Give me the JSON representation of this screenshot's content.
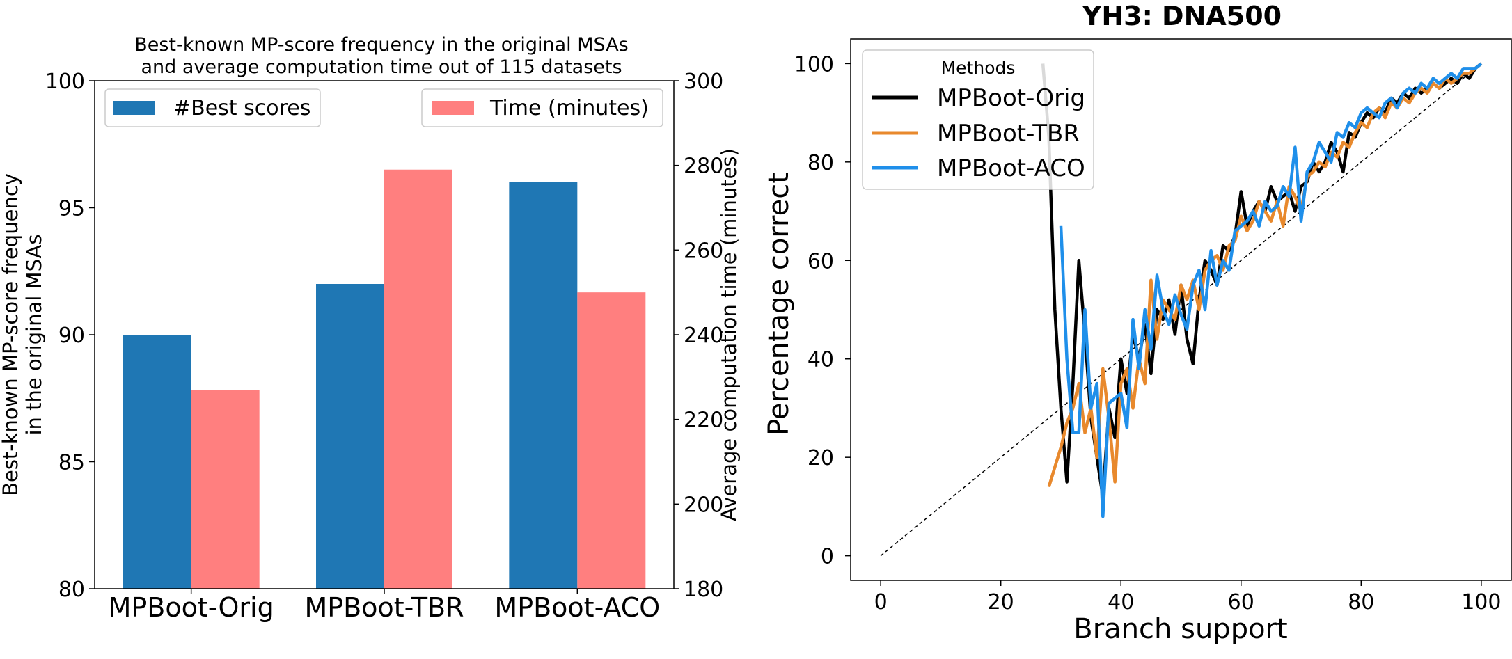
{
  "chart_data": [
    {
      "type": "bar",
      "title_lines": [
        "Best-known MP-score frequency in the original MSAs",
        "and average computation time out of 115 datasets"
      ],
      "categories": [
        "MPBoot-Orig",
        "MPBoot-TBR",
        "MPBoot-ACO"
      ],
      "ylabel_left_lines": [
        "Best-known MP-score frequency",
        "in the original MSAs"
      ],
      "ylabel_right": "Average computation time (minutes)",
      "ylim_left": [
        80,
        100
      ],
      "ylim_right": [
        180,
        300
      ],
      "yticks_left": [
        "80",
        "85",
        "90",
        "95",
        "100"
      ],
      "yticks_right": [
        "180",
        "200",
        "220",
        "240",
        "260",
        "280",
        "300"
      ],
      "series": [
        {
          "name": "#Best scores",
          "axis": "left",
          "color": "#1f77b4",
          "values": [
            90,
            92,
            96
          ]
        },
        {
          "name": "Time (minutes)",
          "axis": "right",
          "color": "#ff7f7f",
          "values": [
            227,
            279,
            250
          ]
        }
      ],
      "legend_left_position": "upper-left",
      "legend_right_position": "upper-right"
    },
    {
      "type": "line",
      "title": "YH3: DNA500",
      "xlabel": "Branch support",
      "ylabel": "Percentage correct",
      "xlim": [
        -5,
        105
      ],
      "ylim": [
        -5,
        105
      ],
      "xticks": [
        "0",
        "20",
        "40",
        "60",
        "80",
        "100"
      ],
      "yticks": [
        "0",
        "20",
        "40",
        "60",
        "80",
        "100"
      ],
      "legend_title": "Methods",
      "legend_position": "upper-left",
      "diagonal": {
        "from": [
          0,
          0
        ],
        "to": [
          100,
          100
        ],
        "style": "dashed",
        "color": "#000000"
      },
      "series": [
        {
          "name": "MPBoot-Orig",
          "color": "#000000",
          "x": [
            27,
            28,
            29,
            30,
            31,
            32,
            33,
            34,
            35,
            36,
            37,
            38,
            39,
            40,
            41,
            42,
            43,
            44,
            45,
            46,
            47,
            48,
            49,
            50,
            51,
            52,
            53,
            54,
            55,
            56,
            57,
            58,
            59,
            60,
            61,
            62,
            63,
            64,
            65,
            66,
            67,
            68,
            69,
            70,
            71,
            72,
            73,
            74,
            75,
            76,
            77,
            78,
            79,
            80,
            81,
            82,
            83,
            84,
            85,
            86,
            87,
            88,
            89,
            90,
            91,
            92,
            93,
            94,
            95,
            96,
            97,
            98,
            99,
            100
          ],
          "y": [
            100,
            85,
            50,
            30,
            15,
            35,
            60,
            45,
            28,
            20,
            12,
            30,
            24,
            40,
            33,
            45,
            40,
            47,
            37,
            50,
            48,
            52,
            45,
            55,
            44,
            39,
            52,
            60,
            58,
            55,
            63,
            62,
            65,
            74,
            67,
            70,
            72,
            70,
            75,
            72,
            73,
            74,
            70,
            75,
            76,
            80,
            78,
            80,
            84,
            82,
            78,
            86,
            85,
            88,
            90,
            89,
            91,
            90,
            93,
            92,
            94,
            93,
            95,
            94,
            95,
            96,
            95,
            96,
            97,
            96,
            98,
            97,
            99,
            100
          ]
        },
        {
          "name": "MPBoot-TBR",
          "color": "#e8892d",
          "x": [
            28,
            29,
            30,
            31,
            32,
            33,
            34,
            35,
            36,
            37,
            38,
            39,
            40,
            41,
            42,
            43,
            44,
            45,
            46,
            47,
            48,
            49,
            50,
            51,
            52,
            53,
            54,
            55,
            56,
            57,
            58,
            59,
            60,
            61,
            62,
            63,
            64,
            65,
            66,
            67,
            68,
            69,
            70,
            71,
            72,
            73,
            74,
            75,
            76,
            77,
            78,
            79,
            80,
            81,
            82,
            83,
            84,
            85,
            86,
            87,
            88,
            89,
            90,
            91,
            92,
            93,
            94,
            95,
            96,
            97,
            98,
            99,
            100
          ],
          "y": [
            14,
            18,
            22,
            27,
            30,
            35,
            25,
            30,
            20,
            38,
            28,
            15,
            35,
            38,
            30,
            40,
            35,
            56,
            44,
            52,
            50,
            48,
            55,
            52,
            56,
            50,
            58,
            60,
            61,
            58,
            63,
            64,
            69,
            66,
            68,
            72,
            70,
            68,
            72,
            67,
            75,
            73,
            70,
            77,
            78,
            80,
            79,
            82,
            81,
            84,
            83,
            86,
            88,
            87,
            90,
            91,
            89,
            92,
            91,
            93,
            92,
            94,
            95,
            94,
            96,
            95,
            97,
            96,
            97,
            98,
            98,
            99,
            100
          ]
        },
        {
          "name": "MPBoot-ACO",
          "color": "#1f8fea",
          "x": [
            30,
            31,
            32,
            33,
            34,
            35,
            36,
            37,
            38,
            39,
            40,
            41,
            42,
            43,
            44,
            45,
            46,
            47,
            48,
            49,
            50,
            51,
            52,
            53,
            54,
            55,
            56,
            57,
            58,
            59,
            60,
            61,
            62,
            63,
            64,
            65,
            66,
            67,
            68,
            69,
            70,
            71,
            72,
            73,
            74,
            75,
            76,
            77,
            78,
            79,
            80,
            81,
            82,
            83,
            84,
            85,
            86,
            87,
            88,
            89,
            90,
            91,
            92,
            93,
            94,
            95,
            96,
            97,
            98,
            99,
            100
          ],
          "y": [
            67,
            40,
            25,
            25,
            50,
            30,
            35,
            8,
            31,
            32,
            33,
            26,
            48,
            38,
            50,
            42,
            57,
            50,
            47,
            53,
            49,
            46,
            55,
            58,
            50,
            62,
            55,
            60,
            58,
            66,
            67,
            68,
            70,
            67,
            72,
            70,
            71,
            75,
            73,
            83,
            68,
            78,
            80,
            84,
            82,
            80,
            86,
            85,
            88,
            87,
            90,
            91,
            90,
            89,
            92,
            93,
            91,
            94,
            95,
            94,
            96,
            95,
            97,
            96,
            97,
            98,
            97,
            99,
            99,
            99,
            100
          ]
        }
      ]
    }
  ]
}
